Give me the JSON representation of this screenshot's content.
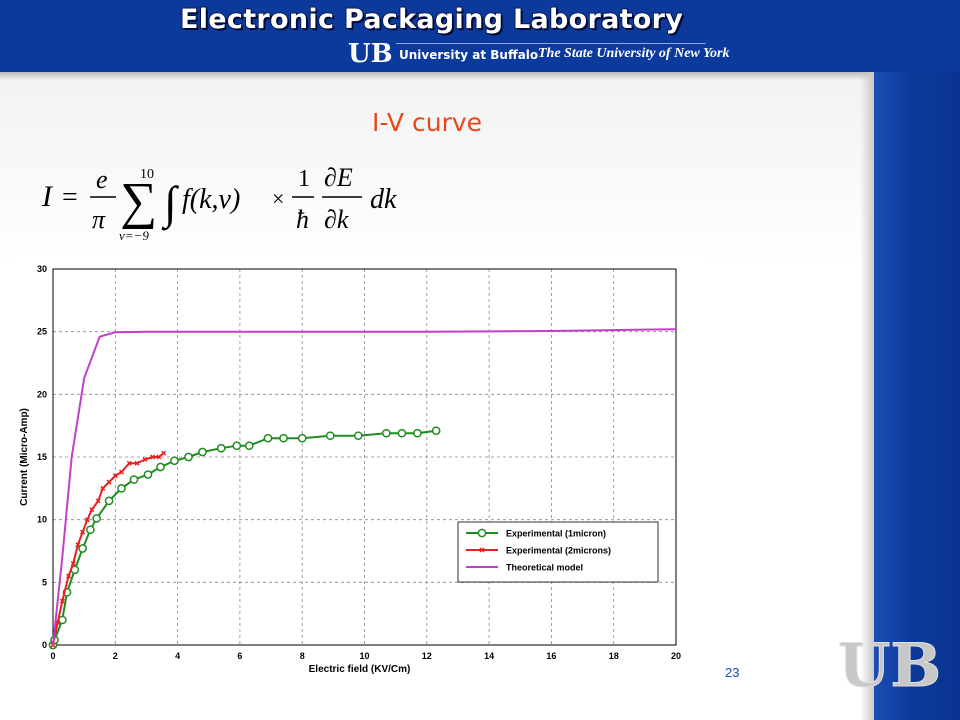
{
  "header": {
    "lab_title": "Electronic Packaging Laboratory",
    "university_bold": "University at Buffalo",
    "university_italic": "The State University of New York",
    "logo_text": "UB",
    "bg_color": "#0b3a9c"
  },
  "slide": {
    "title": "I-V curve",
    "title_color": "#e8471b",
    "page_number": "23"
  },
  "formula": {
    "lhs": "I",
    "eq": "=",
    "frac_num": "e",
    "frac_den": "π",
    "sum_upper": "10",
    "sum_lower": "ν=−9",
    "sum_symbol": "∑",
    "integral_symbol": "∫",
    "integrand": "f(k,ν)",
    "times": "×",
    "one": "1",
    "hbar": "ħ",
    "deriv_num": "∂E",
    "deriv_den": "∂k",
    "dk": "dk"
  },
  "chart_data": {
    "type": "line",
    "xlabel": "Electric field (KV/Cm)",
    "ylabel": "Current (Micro-Amp)",
    "xlim": [
      0,
      20
    ],
    "ylim": [
      0,
      30
    ],
    "xticks": [
      "0",
      "2",
      "4",
      "6",
      "8",
      "10",
      "12",
      "14",
      "16",
      "18",
      "20"
    ],
    "yticks": [
      "0",
      "5",
      "10",
      "15",
      "20",
      "25",
      "30"
    ],
    "grid": true,
    "legend_position": "bottom-right",
    "series": [
      {
        "name": "Experimental (1micron)",
        "color": "#1e8c1e",
        "marker": "circle",
        "points": [
          [
            0,
            0
          ],
          [
            0.05,
            0.4
          ],
          [
            0.3,
            2
          ],
          [
            0.45,
            4.2
          ],
          [
            0.7,
            6
          ],
          [
            0.95,
            7.7
          ],
          [
            1.2,
            9.2
          ],
          [
            1.4,
            10.1
          ],
          [
            1.8,
            11.5
          ],
          [
            2.2,
            12.5
          ],
          [
            2.6,
            13.2
          ],
          [
            3.05,
            13.6
          ],
          [
            3.45,
            14.2
          ],
          [
            3.9,
            14.7
          ],
          [
            4.35,
            15
          ],
          [
            4.8,
            15.4
          ],
          [
            5.4,
            15.7
          ],
          [
            5.9,
            15.9
          ],
          [
            6.3,
            15.9
          ],
          [
            6.9,
            16.5
          ],
          [
            7.4,
            16.5
          ],
          [
            8,
            16.5
          ],
          [
            8.9,
            16.7
          ],
          [
            9.8,
            16.7
          ],
          [
            10.7,
            16.9
          ],
          [
            11.2,
            16.9
          ],
          [
            11.7,
            16.9
          ],
          [
            12.3,
            17.1
          ]
        ]
      },
      {
        "name": "Experimental (2microns)",
        "color": "#e8201e",
        "marker": "x",
        "points": [
          [
            0,
            0
          ],
          [
            0.15,
            1.8
          ],
          [
            0.3,
            3.5
          ],
          [
            0.5,
            5.5
          ],
          [
            0.65,
            6.5
          ],
          [
            0.8,
            8
          ],
          [
            0.95,
            9
          ],
          [
            1.1,
            10
          ],
          [
            1.25,
            10.8
          ],
          [
            1.45,
            11.5
          ],
          [
            1.6,
            12.5
          ],
          [
            1.8,
            13
          ],
          [
            2,
            13.5
          ],
          [
            2.2,
            13.8
          ],
          [
            2.45,
            14.5
          ],
          [
            2.7,
            14.5
          ],
          [
            2.95,
            14.8
          ],
          [
            3.2,
            15
          ],
          [
            3.4,
            15
          ],
          [
            3.55,
            15.3
          ]
        ]
      },
      {
        "name": "Theoretical model",
        "color": "#c23fc9",
        "marker": "none",
        "points": [
          [
            0,
            0
          ],
          [
            0.3,
            7
          ],
          [
            0.6,
            15
          ],
          [
            1,
            21.3
          ],
          [
            1.5,
            24.6
          ],
          [
            2,
            24.95
          ],
          [
            3,
            25
          ],
          [
            5,
            25
          ],
          [
            8,
            25
          ],
          [
            12,
            25
          ],
          [
            16,
            25.05
          ],
          [
            20,
            25.2
          ]
        ]
      }
    ]
  }
}
